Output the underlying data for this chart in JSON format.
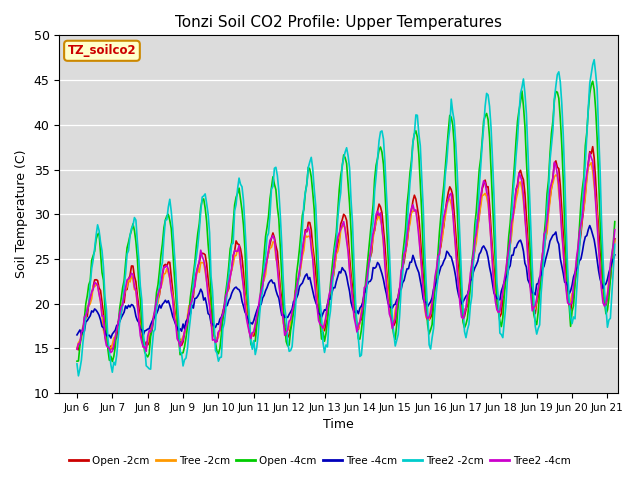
{
  "title": "Tonzi Soil CO2 Profile: Upper Temperatures",
  "xlabel": "Time",
  "ylabel": "Soil Temperature (C)",
  "ylim": [
    10,
    50
  ],
  "xlim_days": [
    5.5,
    21.3
  ],
  "xtick_days": [
    6,
    7,
    8,
    9,
    10,
    11,
    12,
    13,
    14,
    15,
    16,
    17,
    18,
    19,
    20,
    21
  ],
  "xtick_labels": [
    "Jun 6",
    "Jun 7",
    "Jun 8",
    "Jun 9",
    "Jun 10",
    "Jun 11",
    "Jun 12",
    "Jun 13",
    "Jun 14",
    "Jun 15",
    "Jun 16",
    "Jun 17",
    "Jun 18",
    "Jun 19",
    "Jun 20",
    "Jun 21"
  ],
  "plot_bg": "#dcdcdc",
  "legend_label": "TZ_soilco2",
  "legend_bg": "#ffffcc",
  "legend_edge": "#cc8800",
  "series_colors": [
    "#cc0000",
    "#ff9900",
    "#00cc00",
    "#0000bb",
    "#00cccc",
    "#cc00cc"
  ],
  "series_labels": [
    "Open -2cm",
    "Tree -2cm",
    "Open -4cm",
    "Tree -4cm",
    "Tree2 -2cm",
    "Tree2 -4cm"
  ],
  "series_linewidths": [
    1.2,
    1.2,
    1.2,
    1.2,
    1.2,
    1.2
  ],
  "yticks": [
    10,
    15,
    20,
    25,
    30,
    35,
    40,
    45,
    50
  ]
}
